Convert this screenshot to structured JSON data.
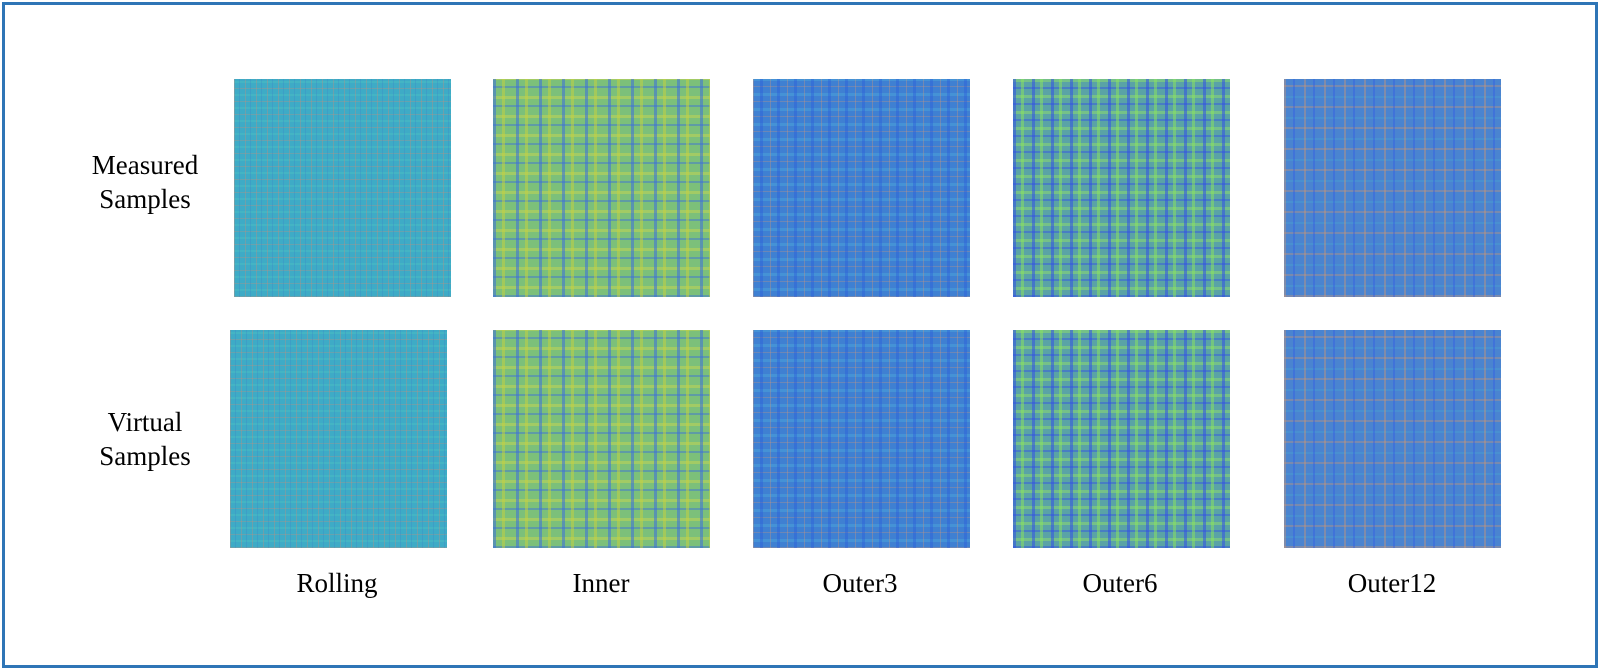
{
  "row_labels": [
    "Measured Samples",
    "Virtual Samples"
  ],
  "column_labels": [
    "Rolling",
    "Inner",
    "Outer3",
    "Outer6",
    "Outer12"
  ]
}
